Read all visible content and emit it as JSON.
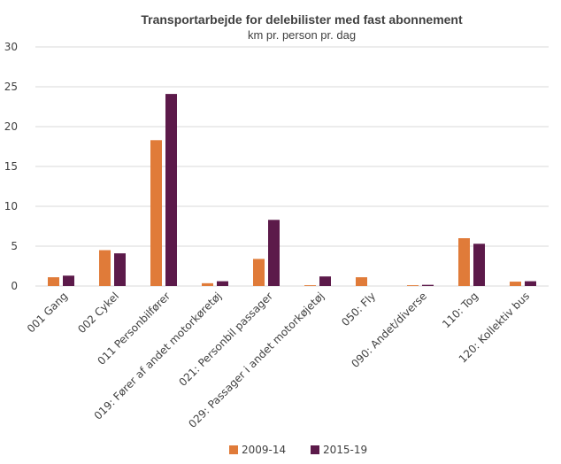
{
  "chart_data": {
    "type": "bar",
    "title": "Transportarbejde for delebilister med fast abonnement",
    "subtitle": "km pr. person pr. dag",
    "xlabel": "",
    "ylabel": "",
    "ylim": [
      0,
      30
    ],
    "yticks": [
      0,
      5,
      10,
      15,
      20,
      25,
      30
    ],
    "grid": true,
    "legend": "bottom",
    "categories": [
      "001 Gang",
      "002 Cykel",
      "011 Personbilfører",
      "019: Fører af andet motorkøretøj",
      "021: Personbil passager",
      "029: Passager i andet motorkøjetøj",
      "050: Fly",
      "090: Andet/diverse",
      "110: Tog",
      "120: Kollektiv bus"
    ],
    "series": [
      {
        "name": "2009-14",
        "color": "#e07b39",
        "values": [
          1.1,
          4.5,
          18.3,
          0.35,
          3.4,
          0.1,
          1.1,
          0.1,
          6.0,
          0.55
        ]
      },
      {
        "name": "2015-19",
        "color": "#5c1a4a",
        "values": [
          1.3,
          4.1,
          24.1,
          0.6,
          8.3,
          1.2,
          0.0,
          0.15,
          5.3,
          0.6
        ]
      }
    ]
  }
}
